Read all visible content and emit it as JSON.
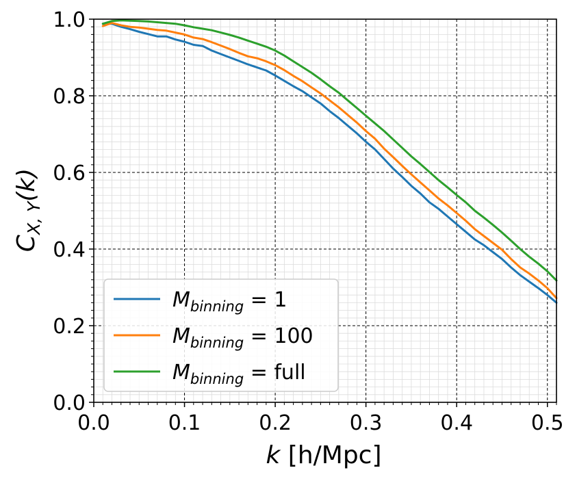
{
  "chart_data": {
    "type": "line",
    "xlabel": {
      "var": "k",
      "unit": " [h/Mpc]"
    },
    "ylabel": {
      "base": "C",
      "sub": "X, Y",
      "arg": "(k)"
    },
    "xlim": [
      0.0,
      0.51
    ],
    "ylim": [
      0.0,
      1.0
    ],
    "x_major_ticks": [
      "0.0",
      "0.1",
      "0.2",
      "0.3",
      "0.4",
      "0.5"
    ],
    "y_major_ticks": [
      "0.0",
      "0.2",
      "0.4",
      "0.6",
      "0.8",
      "1.0"
    ],
    "grid": {
      "major": true,
      "major_style": "dashed black",
      "minor": true,
      "minor_style": "light gray"
    },
    "legend_position": "lower-left",
    "series": [
      {
        "name": "M_binning = 1",
        "legend_base": "M",
        "legend_sub": "binning",
        "legend_value": " = 1",
        "color": "#1f77b4",
        "points": [
          [
            0.01,
            0.988
          ],
          [
            0.02,
            0.988
          ],
          [
            0.03,
            0.98
          ],
          [
            0.04,
            0.974
          ],
          [
            0.05,
            0.967
          ],
          [
            0.06,
            0.961
          ],
          [
            0.07,
            0.955
          ],
          [
            0.08,
            0.955
          ],
          [
            0.09,
            0.947
          ],
          [
            0.1,
            0.941
          ],
          [
            0.11,
            0.933
          ],
          [
            0.12,
            0.93
          ],
          [
            0.13,
            0.918
          ],
          [
            0.14,
            0.909
          ],
          [
            0.15,
            0.9
          ],
          [
            0.16,
            0.891
          ],
          [
            0.17,
            0.882
          ],
          [
            0.18,
            0.874
          ],
          [
            0.19,
            0.866
          ],
          [
            0.2,
            0.853
          ],
          [
            0.21,
            0.839
          ],
          [
            0.22,
            0.825
          ],
          [
            0.23,
            0.812
          ],
          [
            0.24,
            0.796
          ],
          [
            0.25,
            0.78
          ],
          [
            0.26,
            0.76
          ],
          [
            0.27,
            0.742
          ],
          [
            0.28,
            0.722
          ],
          [
            0.29,
            0.702
          ],
          [
            0.3,
            0.68
          ],
          [
            0.31,
            0.66
          ],
          [
            0.32,
            0.635
          ],
          [
            0.33,
            0.61
          ],
          [
            0.34,
            0.588
          ],
          [
            0.35,
            0.565
          ],
          [
            0.36,
            0.545
          ],
          [
            0.37,
            0.522
          ],
          [
            0.38,
            0.505
          ],
          [
            0.39,
            0.485
          ],
          [
            0.4,
            0.465
          ],
          [
            0.41,
            0.445
          ],
          [
            0.42,
            0.425
          ],
          [
            0.43,
            0.41
          ],
          [
            0.44,
            0.392
          ],
          [
            0.45,
            0.374
          ],
          [
            0.46,
            0.352
          ],
          [
            0.47,
            0.332
          ],
          [
            0.48,
            0.315
          ],
          [
            0.49,
            0.298
          ],
          [
            0.5,
            0.28
          ],
          [
            0.51,
            0.26
          ]
        ]
      },
      {
        "name": "M_binning = 100",
        "legend_base": "M",
        "legend_sub": "binning",
        "legend_value": " = 100",
        "color": "#ff7f0e",
        "points": [
          [
            0.01,
            0.982
          ],
          [
            0.02,
            0.99
          ],
          [
            0.03,
            0.984
          ],
          [
            0.04,
            0.98
          ],
          [
            0.05,
            0.978
          ],
          [
            0.06,
            0.975
          ],
          [
            0.07,
            0.972
          ],
          [
            0.08,
            0.97
          ],
          [
            0.09,
            0.965
          ],
          [
            0.1,
            0.96
          ],
          [
            0.11,
            0.952
          ],
          [
            0.12,
            0.948
          ],
          [
            0.13,
            0.94
          ],
          [
            0.14,
            0.931
          ],
          [
            0.15,
            0.922
          ],
          [
            0.16,
            0.912
          ],
          [
            0.17,
            0.903
          ],
          [
            0.18,
            0.898
          ],
          [
            0.19,
            0.89
          ],
          [
            0.2,
            0.88
          ],
          [
            0.21,
            0.867
          ],
          [
            0.22,
            0.852
          ],
          [
            0.23,
            0.838
          ],
          [
            0.24,
            0.822
          ],
          [
            0.25,
            0.806
          ],
          [
            0.26,
            0.788
          ],
          [
            0.27,
            0.77
          ],
          [
            0.28,
            0.75
          ],
          [
            0.29,
            0.73
          ],
          [
            0.3,
            0.708
          ],
          [
            0.31,
            0.688
          ],
          [
            0.32,
            0.662
          ],
          [
            0.33,
            0.64
          ],
          [
            0.34,
            0.617
          ],
          [
            0.35,
            0.595
          ],
          [
            0.36,
            0.574
          ],
          [
            0.37,
            0.553
          ],
          [
            0.38,
            0.532
          ],
          [
            0.39,
            0.514
          ],
          [
            0.4,
            0.494
          ],
          [
            0.41,
            0.474
          ],
          [
            0.42,
            0.452
          ],
          [
            0.43,
            0.434
          ],
          [
            0.44,
            0.416
          ],
          [
            0.45,
            0.398
          ],
          [
            0.46,
            0.374
          ],
          [
            0.47,
            0.352
          ],
          [
            0.48,
            0.336
          ],
          [
            0.49,
            0.318
          ],
          [
            0.5,
            0.298
          ],
          [
            0.51,
            0.272
          ]
        ]
      },
      {
        "name": "M_binning = full",
        "legend_base": "M",
        "legend_sub": "binning",
        "legend_value": " = full",
        "color": "#2ca02c",
        "points": [
          [
            0.01,
            0.988
          ],
          [
            0.02,
            0.995
          ],
          [
            0.03,
            0.997
          ],
          [
            0.04,
            0.996
          ],
          [
            0.05,
            0.995
          ],
          [
            0.06,
            0.994
          ],
          [
            0.07,
            0.992
          ],
          [
            0.08,
            0.99
          ],
          [
            0.09,
            0.988
          ],
          [
            0.1,
            0.984
          ],
          [
            0.11,
            0.979
          ],
          [
            0.12,
            0.975
          ],
          [
            0.13,
            0.971
          ],
          [
            0.14,
            0.965
          ],
          [
            0.15,
            0.959
          ],
          [
            0.16,
            0.952
          ],
          [
            0.17,
            0.944
          ],
          [
            0.18,
            0.936
          ],
          [
            0.19,
            0.928
          ],
          [
            0.2,
            0.918
          ],
          [
            0.21,
            0.905
          ],
          [
            0.22,
            0.89
          ],
          [
            0.23,
            0.875
          ],
          [
            0.24,
            0.86
          ],
          [
            0.25,
            0.843
          ],
          [
            0.26,
            0.825
          ],
          [
            0.27,
            0.808
          ],
          [
            0.28,
            0.788
          ],
          [
            0.29,
            0.768
          ],
          [
            0.3,
            0.748
          ],
          [
            0.31,
            0.728
          ],
          [
            0.32,
            0.708
          ],
          [
            0.33,
            0.686
          ],
          [
            0.34,
            0.664
          ],
          [
            0.35,
            0.642
          ],
          [
            0.36,
            0.622
          ],
          [
            0.37,
            0.601
          ],
          [
            0.38,
            0.58
          ],
          [
            0.39,
            0.561
          ],
          [
            0.4,
            0.541
          ],
          [
            0.41,
            0.522
          ],
          [
            0.42,
            0.5
          ],
          [
            0.43,
            0.482
          ],
          [
            0.44,
            0.463
          ],
          [
            0.45,
            0.443
          ],
          [
            0.46,
            0.422
          ],
          [
            0.47,
            0.4
          ],
          [
            0.48,
            0.38
          ],
          [
            0.49,
            0.362
          ],
          [
            0.5,
            0.342
          ],
          [
            0.51,
            0.318
          ]
        ]
      }
    ]
  }
}
